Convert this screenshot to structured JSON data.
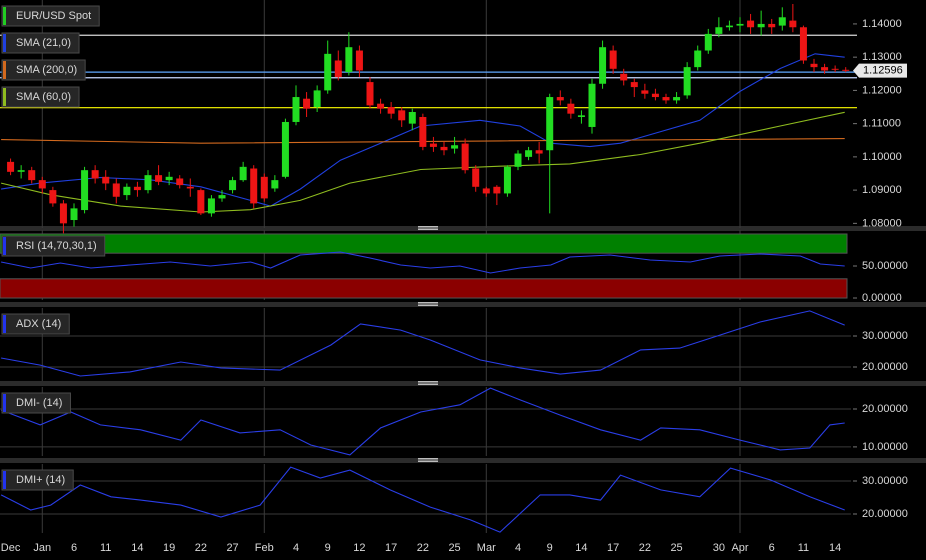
{
  "chart_data": [
    {
      "type": "candlestick",
      "title": "EUR/USD Spot",
      "color": "#22cc22",
      "up_color": "#22dd22",
      "down_color": "#ee1515",
      "xlim": [
        -1,
        79.5
      ],
      "ylim": [
        1.0786,
        1.1472
      ],
      "grid": false,
      "yticks": [
        {
          "value": 1.14,
          "label": "1.14000"
        },
        {
          "value": 1.13,
          "label": "1.13000"
        },
        {
          "value": 1.12,
          "label": "1.12000"
        },
        {
          "value": 1.11,
          "label": "1.11000"
        },
        {
          "value": 1.1,
          "label": "1.10000"
        },
        {
          "value": 1.09,
          "label": "1.09000"
        },
        {
          "value": 1.08,
          "label": "1.08000"
        }
      ],
      "open": [
        1.0985,
        1.0955,
        1.096,
        1.093,
        1.09,
        1.086,
        1.081,
        1.084,
        1.096,
        1.094,
        1.092,
        1.0885,
        1.091,
        1.09,
        1.0945,
        1.093,
        1.0935,
        1.091,
        1.09,
        1.083,
        1.0875,
        1.09,
        1.093,
        1.0965,
        1.094,
        1.0905,
        1.094,
        1.1105,
        1.1175,
        1.115,
        1.12,
        1.129,
        1.1255,
        1.132,
        1.1225,
        1.116,
        1.115,
        1.114,
        1.11,
        1.112,
        1.104,
        1.103,
        1.1025,
        1.104,
        1.0965,
        1.0905,
        1.091,
        1.089,
        1.097,
        1.1,
        1.102,
        1.102,
        1.118,
        1.116,
        1.112,
        1.109,
        1.122,
        1.132,
        1.125,
        1.1225,
        1.12,
        1.119,
        1.118,
        1.117,
        1.1185,
        1.127,
        1.132,
        1.137,
        1.139,
        1.1395,
        1.141,
        1.139,
        1.14,
        1.1395,
        1.141,
        1.139,
        1.128,
        1.127,
        1.1265,
        1.1262
      ],
      "close": [
        1.0955,
        1.096,
        1.093,
        1.0905,
        1.086,
        1.08,
        1.0845,
        1.096,
        1.0935,
        1.092,
        1.088,
        1.091,
        1.09,
        1.0945,
        1.0925,
        1.094,
        1.0915,
        1.0905,
        1.083,
        1.0875,
        1.0885,
        1.093,
        1.097,
        1.086,
        1.0875,
        1.093,
        1.1105,
        1.118,
        1.1145,
        1.12,
        1.131,
        1.124,
        1.133,
        1.126,
        1.1155,
        1.1145,
        1.113,
        1.111,
        1.1135,
        1.103,
        1.103,
        1.102,
        1.1035,
        1.096,
        1.091,
        1.089,
        1.089,
        1.097,
        1.101,
        1.102,
        1.101,
        1.118,
        1.117,
        1.113,
        1.1125,
        1.122,
        1.133,
        1.1265,
        1.123,
        1.121,
        1.119,
        1.118,
        1.117,
        1.118,
        1.127,
        1.132,
        1.137,
        1.139,
        1.1395,
        1.14,
        1.139,
        1.14,
        1.139,
        1.142,
        1.139,
        1.129,
        1.127,
        1.126,
        1.1262,
        1.126
      ],
      "high": [
        1.0995,
        1.0975,
        1.097,
        1.094,
        1.091,
        1.087,
        1.086,
        1.097,
        1.0975,
        1.096,
        1.0935,
        1.092,
        1.0925,
        1.096,
        1.0975,
        1.0955,
        1.0945,
        1.0935,
        1.0905,
        1.0885,
        1.09,
        1.094,
        1.0985,
        1.0975,
        1.095,
        1.0945,
        1.1115,
        1.1215,
        1.1195,
        1.1215,
        1.135,
        1.132,
        1.1375,
        1.1335,
        1.124,
        1.1175,
        1.1165,
        1.115,
        1.1145,
        1.113,
        1.106,
        1.1045,
        1.106,
        1.1055,
        1.0975,
        1.091,
        1.0915,
        1.0975,
        1.102,
        1.103,
        1.1045,
        1.119,
        1.12,
        1.1175,
        1.114,
        1.1235,
        1.135,
        1.1335,
        1.1265,
        1.1235,
        1.122,
        1.1205,
        1.119,
        1.1195,
        1.1285,
        1.1335,
        1.1385,
        1.142,
        1.141,
        1.142,
        1.143,
        1.144,
        1.1415,
        1.145,
        1.146,
        1.1395,
        1.1295,
        1.128,
        1.1275,
        1.127
      ],
      "low": [
        1.0945,
        1.0935,
        1.092,
        1.089,
        1.085,
        1.077,
        1.079,
        1.083,
        1.092,
        1.09,
        1.086,
        1.087,
        1.088,
        1.089,
        1.0915,
        1.0915,
        1.0905,
        1.088,
        1.0825,
        1.082,
        1.0865,
        1.089,
        1.0925,
        1.0845,
        1.0865,
        1.0895,
        1.0935,
        1.1095,
        1.112,
        1.1135,
        1.119,
        1.123,
        1.1245,
        1.124,
        1.1145,
        1.113,
        1.1115,
        1.109,
        1.108,
        1.102,
        1.1015,
        1.1005,
        1.101,
        1.095,
        1.0895,
        1.088,
        1.0855,
        1.088,
        1.096,
        1.099,
        1.098,
        1.083,
        1.1155,
        1.1115,
        1.11,
        1.107,
        1.1205,
        1.125,
        1.1215,
        1.118,
        1.1175,
        1.117,
        1.116,
        1.116,
        1.1175,
        1.126,
        1.131,
        1.136,
        1.138,
        1.1375,
        1.137,
        1.1365,
        1.137,
        1.138,
        1.1375,
        1.128,
        1.1255,
        1.125,
        1.1255,
        1.1255
      ],
      "series": [
        {
          "name": "SMA (21,0)",
          "color": "#2040e0",
          "x": [
            -0.9,
            2.8,
            8.5,
            13.2,
            18,
            22.7,
            24.6,
            27.4,
            31.2,
            35,
            38.8,
            44.4,
            48.2,
            51.1,
            54.8,
            57.7,
            61.5,
            65.2,
            69,
            72.8,
            76.1,
            78.9
          ],
          "values": [
            1.0903,
            1.0921,
            1.0938,
            1.0931,
            1.091,
            1.0869,
            1.0852,
            1.0903,
            1.099,
            1.1041,
            1.1093,
            1.111,
            1.1093,
            1.1041,
            1.1031,
            1.1041,
            1.1076,
            1.111,
            1.1197,
            1.1266,
            1.131,
            1.13
          ]
        },
        {
          "name": "SMA (200,0)",
          "color": "#d2691e",
          "x": [
            -0.9,
            18,
            46.3,
            78.9
          ],
          "values": [
            1.1052,
            1.1041,
            1.1048,
            1.1055
          ]
        },
        {
          "name": "SMA (60,0)",
          "color": "#8fbc1f",
          "x": [
            -0.9,
            3.8,
            10.4,
            18,
            22.7,
            27.4,
            32.1,
            38.8,
            46.3,
            52.9,
            59.6,
            65.2,
            72.8,
            78.9
          ],
          "values": [
            1.0921,
            1.0886,
            1.0852,
            1.0834,
            1.0841,
            1.0869,
            1.0921,
            1.0962,
            1.0972,
            1.0979,
            1.1007,
            1.1041,
            1.1093,
            1.1134
          ]
        }
      ],
      "hlines": [
        {
          "value": 1.1366,
          "color": "#d8d8d8"
        },
        {
          "value": 1.1255,
          "color": "#5fa8ff"
        },
        {
          "value": 1.1238,
          "color": "#c8d8ff"
        },
        {
          "value": 1.1148,
          "color": "#ffff00"
        }
      ],
      "last_label": {
        "value": 1.12596,
        "label": "1.12596"
      }
    },
    {
      "type": "line",
      "xlim": [
        -1,
        79.5
      ],
      "ylim": [
        -3.1,
        106.2
      ],
      "grid": false,
      "yticks": [
        {
          "value": 50,
          "label": "50.00000"
        },
        {
          "value": 0,
          "label": "0.00000"
        }
      ],
      "bands": [
        {
          "from": 70,
          "to": 100,
          "color": "#008000"
        },
        {
          "from": 0,
          "to": 30,
          "color": "#8b0000"
        }
      ],
      "series": [
        {
          "name": "RSI (14,70,30,1)",
          "color": "#2a3ee8",
          "x": [
            -0.9,
            1.9,
            4.7,
            7.6,
            11.3,
            15.1,
            18.9,
            22.7,
            24.6,
            27.4,
            31.2,
            34,
            36.9,
            39.7,
            42.5,
            45.4,
            48.2,
            51.1,
            52.9,
            56.7,
            60.5,
            64.3,
            67.1,
            70.9,
            74.7,
            76.6,
            78.9
          ],
          "values": [
            56.3,
            46.9,
            54.7,
            46.9,
            51.6,
            56.3,
            50,
            56.3,
            46.9,
            67.2,
            71.9,
            62.5,
            51.6,
            46.9,
            50,
            39.1,
            46.9,
            51.6,
            64.1,
            67.2,
            59.4,
            56.3,
            65.6,
            68.8,
            65.6,
            53.1,
            50
          ]
        }
      ]
    },
    {
      "type": "line",
      "xlim": [
        -1,
        79.5
      ],
      "ylim": [
        15.48,
        39.03
      ],
      "grid": true,
      "yticks": [
        {
          "value": 30,
          "label": "30.00000"
        },
        {
          "value": 20,
          "label": "20.00000"
        }
      ],
      "series": [
        {
          "name": "ADX (14)",
          "color": "#2a3ee8",
          "x": [
            -0.9,
            2.8,
            6.6,
            11.3,
            16.1,
            19.9,
            25.5,
            30.3,
            33.1,
            36.9,
            39.7,
            44.4,
            48.2,
            52,
            55.8,
            59.6,
            63.3,
            67.1,
            70.9,
            75.6,
            78.9
          ],
          "values": [
            22.9,
            20.6,
            17.1,
            18.4,
            21.6,
            19.7,
            19.0,
            27.1,
            33.9,
            31.9,
            28.7,
            22.3,
            19.7,
            17.7,
            19.0,
            25.5,
            26.1,
            30.3,
            34.5,
            38.1,
            33.5
          ]
        }
      ]
    },
    {
      "type": "line",
      "xlim": [
        -1,
        79.5
      ],
      "ylim": [
        7.6,
        25.8
      ],
      "grid": true,
      "yticks": [
        {
          "value": 20,
          "label": "20.00000"
        },
        {
          "value": 10,
          "label": "10.00000"
        }
      ],
      "series": [
        {
          "name": "DMI- (14)",
          "color": "#2a3ee8",
          "x": [
            -0.9,
            2.8,
            5.7,
            8.5,
            12.3,
            16.1,
            18,
            21.7,
            25.5,
            28.4,
            32.1,
            35,
            38.8,
            42.5,
            45.4,
            48.2,
            52,
            55.8,
            59.6,
            61.5,
            65.2,
            69,
            72.8,
            75.6,
            77.5,
            78.9
          ],
          "values": [
            19.7,
            15.8,
            19.2,
            15.8,
            14.5,
            11.8,
            17.1,
            13.7,
            14.5,
            10.5,
            7.9,
            15.0,
            19.2,
            21.1,
            25.5,
            22.4,
            18.4,
            14.5,
            11.8,
            15.0,
            14.5,
            11.8,
            9.2,
            9.7,
            15.8,
            16.3
          ]
        }
      ]
    },
    {
      "type": "line",
      "xlim": [
        -1,
        79.5
      ],
      "ylim": [
        14.24,
        35.15
      ],
      "grid": true,
      "yticks": [
        {
          "value": 30,
          "label": "30.00000"
        },
        {
          "value": 20,
          "label": "20.00000"
        }
      ],
      "series": [
        {
          "name": "DMI+ (14)",
          "color": "#2a3ee8",
          "x": [
            -0.9,
            1.9,
            3.8,
            6.6,
            9.5,
            12.3,
            16.1,
            19.9,
            23.6,
            26.5,
            29.3,
            32.1,
            35.9,
            39.7,
            43.5,
            46.3,
            50.1,
            52.9,
            55.8,
            57.7,
            61.5,
            65.2,
            68.1,
            71.9,
            75.6,
            78.9
          ],
          "values": [
            25.8,
            21.2,
            22.7,
            28.8,
            25.2,
            24.2,
            22.7,
            19.1,
            22.7,
            34.2,
            30.9,
            33.3,
            27.3,
            22.1,
            18.2,
            14.5,
            25.8,
            25.8,
            24.2,
            31.8,
            27.3,
            25.2,
            33.9,
            30.3,
            25.2,
            21.2
          ]
        }
      ],
      "xticks": [
        {
          "value": 0,
          "label": "Dec"
        },
        {
          "value": 3,
          "label": "Jan",
          "grid": true
        },
        {
          "value": 6,
          "label": "6"
        },
        {
          "value": 9,
          "label": "11"
        },
        {
          "value": 12,
          "label": "14"
        },
        {
          "value": 15,
          "label": "19"
        },
        {
          "value": 18,
          "label": "22"
        },
        {
          "value": 21,
          "label": "27"
        },
        {
          "value": 24,
          "label": "Feb",
          "grid": true
        },
        {
          "value": 27,
          "label": "4"
        },
        {
          "value": 30,
          "label": "9"
        },
        {
          "value": 33,
          "label": "12"
        },
        {
          "value": 36,
          "label": "17"
        },
        {
          "value": 39,
          "label": "22"
        },
        {
          "value": 42,
          "label": "25"
        },
        {
          "value": 45,
          "label": "Mar",
          "grid": true
        },
        {
          "value": 48,
          "label": "4"
        },
        {
          "value": 51,
          "label": "9"
        },
        {
          "value": 54,
          "label": "14"
        },
        {
          "value": 57,
          "label": "17"
        },
        {
          "value": 60,
          "label": "22"
        },
        {
          "value": 63,
          "label": "25"
        },
        {
          "value": 67,
          "label": "30"
        },
        {
          "value": 69,
          "label": "Apr",
          "grid": true
        },
        {
          "value": 72,
          "label": "6"
        },
        {
          "value": 75,
          "label": "11"
        },
        {
          "value": 78,
          "label": "14"
        }
      ]
    }
  ]
}
